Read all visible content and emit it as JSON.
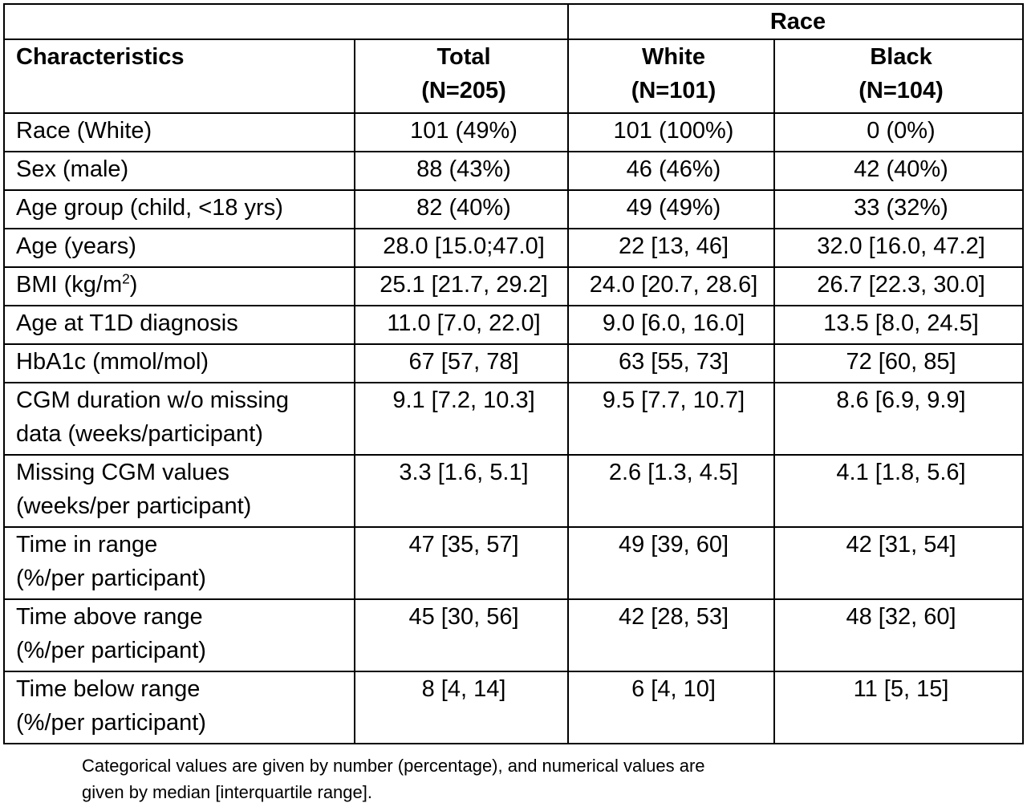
{
  "header": {
    "group_label": "Race",
    "col_characteristics": "Characteristics",
    "col_total": "Total",
    "col_total_n": "(N=205)",
    "col_white": "White",
    "col_white_n": "(N=101)",
    "col_black": "Black",
    "col_black_n": "(N=104)"
  },
  "rows": [
    {
      "label": "Race (White)",
      "total": "101 (49%)",
      "white": "101 (100%)",
      "black": "0 (0%)"
    },
    {
      "label": "Sex (male)",
      "total": "88 (43%)",
      "white": "46 (46%)",
      "black": "42 (40%)"
    },
    {
      "label": "Age group (child, <18 yrs)",
      "total": "82 (40%)",
      "white": "49 (49%)",
      "black": "33 (32%)"
    },
    {
      "label": "Age (years)",
      "total": "28.0 [15.0;47.0]",
      "white": "22 [13, 46]",
      "black": "32.0 [16.0, 47.2]"
    },
    {
      "label": "BMI (kg/m",
      "label_sup": "2",
      "label_end": ")",
      "total": "25.1 [21.7, 29.2]",
      "white": "24.0 [20.7, 28.6]",
      "black": "26.7 [22.3, 30.0]"
    },
    {
      "label": "Age at T1D diagnosis",
      "total": "11.0 [7.0, 22.0]",
      "white": "9.0 [6.0, 16.0]",
      "black": "13.5 [8.0, 24.5]"
    },
    {
      "label": "HbA1c (mmol/mol)",
      "total": "67 [57, 78]",
      "white": "63 [55, 73]",
      "black": "72 [60, 85]"
    },
    {
      "label": "CGM duration w/o missing",
      "label2": "data (weeks/participant)",
      "total": "9.1 [7.2, 10.3]",
      "white": "9.5 [7.7, 10.7]",
      "black": "8.6 [6.9, 9.9]"
    },
    {
      "label": "Missing CGM values",
      "label2": "(weeks/per participant)",
      "total": "3.3 [1.6, 5.1]",
      "white": "2.6 [1.3, 4.5]",
      "black": "4.1 [1.8, 5.6]"
    },
    {
      "label": "Time in range",
      "label2": "(%/per participant)",
      "total": "47 [35, 57]",
      "white": "49 [39, 60]",
      "black": "42 [31, 54]"
    },
    {
      "label": "Time above range",
      "label2": "(%/per participant)",
      "total": "45 [30, 56]",
      "white": "42 [28, 53]",
      "black": "48 [32, 60]"
    },
    {
      "label": "Time below range",
      "label2": "(%/per participant)",
      "total": "8 [4, 14]",
      "white": "6 [4, 10]",
      "black": "11 [5, 15]"
    }
  ],
  "footnote": {
    "line1": "Categorical values are given by number (percentage), and numerical values are",
    "line2": "given by median [interquartile range]."
  }
}
